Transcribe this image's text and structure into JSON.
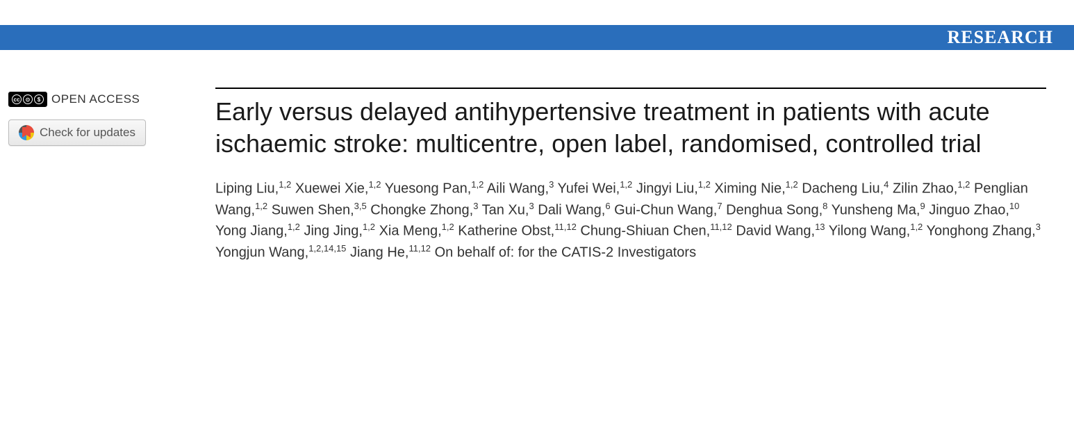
{
  "header": {
    "section_label": "RESEARCH",
    "bar_color": "#2a6ebb",
    "text_color": "#ffffff"
  },
  "sidebar": {
    "open_access_label": "OPEN ACCESS",
    "cc_text": "cc",
    "check_updates_label": "Check for updates"
  },
  "article": {
    "title": "Early versus delayed antihypertensive treatment in patients with acute ischaemic stroke: multicentre, open label, randomised, controlled trial",
    "authors": [
      {
        "name": "Liping Liu",
        "aff": "1,2"
      },
      {
        "name": "Xuewei Xie",
        "aff": "1,2"
      },
      {
        "name": "Yuesong Pan",
        "aff": "1,2"
      },
      {
        "name": "Aili Wang",
        "aff": "3"
      },
      {
        "name": "Yufei Wei",
        "aff": "1,2"
      },
      {
        "name": "Jingyi Liu",
        "aff": "1,2"
      },
      {
        "name": "Ximing Nie",
        "aff": "1,2"
      },
      {
        "name": "Dacheng Liu",
        "aff": "4"
      },
      {
        "name": "Zilin Zhao",
        "aff": "1,2"
      },
      {
        "name": "Penglian Wang",
        "aff": "1,2"
      },
      {
        "name": "Suwen Shen",
        "aff": "3,5"
      },
      {
        "name": "Chongke Zhong",
        "aff": "3"
      },
      {
        "name": "Tan Xu",
        "aff": "3"
      },
      {
        "name": "Dali Wang",
        "aff": "6"
      },
      {
        "name": "Gui-Chun Wang",
        "aff": "7"
      },
      {
        "name": "Denghua Song",
        "aff": "8"
      },
      {
        "name": "Yunsheng Ma",
        "aff": "9"
      },
      {
        "name": "Jinguo Zhao",
        "aff": "10"
      },
      {
        "name": "Yong Jiang",
        "aff": "1,2"
      },
      {
        "name": "Jing Jing",
        "aff": "1,2"
      },
      {
        "name": "Xia Meng",
        "aff": "1,2"
      },
      {
        "name": "Katherine Obst",
        "aff": "11,12"
      },
      {
        "name": "Chung-Shiuan Chen",
        "aff": "11,12"
      },
      {
        "name": "David Wang",
        "aff": "13"
      },
      {
        "name": "Yilong Wang",
        "aff": "1,2"
      },
      {
        "name": "Yonghong Zhang",
        "aff": "3"
      },
      {
        "name": "Yongjun Wang",
        "aff": "1,2,14,15"
      },
      {
        "name": "Jiang He",
        "aff": "11,12"
      }
    ],
    "behalf_text": "On behalf of: for the CATIS-2 Investigators"
  },
  "colors": {
    "background": "#ffffff",
    "title_text": "#1a1a1a",
    "body_text": "#333333",
    "rule": "#000000"
  }
}
